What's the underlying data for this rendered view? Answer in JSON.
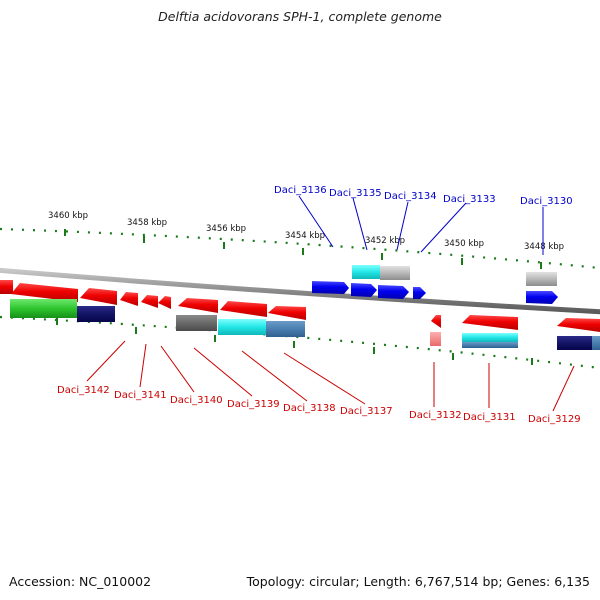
{
  "title": "Delftia acidovorans SPH-1, complete genome",
  "footer": {
    "accession": "Accession: NC_010002",
    "summary": "Topology: circular; Length: 6,767,514 bp; Genes: 6,135"
  },
  "colors": {
    "forward_gene": "#0000ee",
    "reverse_gene": "#ee0000",
    "backbone": "#8a8a8a",
    "ticks": "#1a7a1a",
    "forward_label": "#0000cc",
    "reverse_label": "#cc0000"
  },
  "ticks": [
    "3460 kbp",
    "3458 kbp",
    "3456 kbp",
    "3454 kbp",
    "3452 kbp",
    "3450 kbp",
    "3448 kbp"
  ],
  "forward_labels": [
    "Daci_3136",
    "Daci_3135",
    "Daci_3134",
    "Daci_3133",
    "Daci_3130"
  ],
  "reverse_labels": [
    "Daci_3142",
    "Daci_3141",
    "Daci_3140",
    "Daci_3139",
    "Daci_3138",
    "Daci_3137",
    "Daci_3132",
    "Daci_3131",
    "Daci_3129"
  ]
}
